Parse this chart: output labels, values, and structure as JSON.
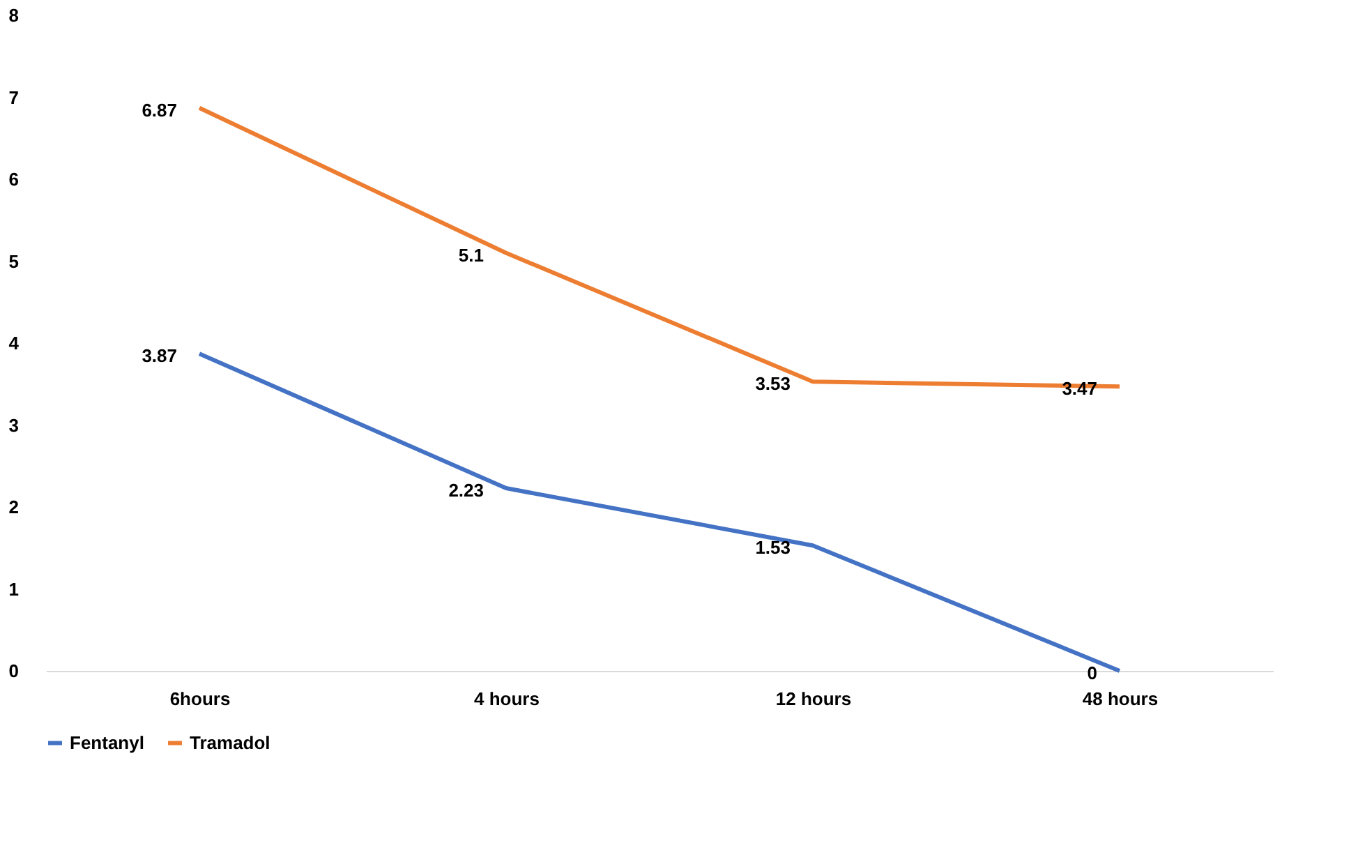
{
  "chart_data": {
    "type": "line",
    "categories": [
      "6hours",
      "4 hours",
      "12 hours",
      "48 hours"
    ],
    "series": [
      {
        "name": "Fentanyl",
        "color": "#4472c4",
        "values": [
          3.87,
          2.23,
          1.53,
          0
        ]
      },
      {
        "name": "Tramadol",
        "color": "#ed7d31",
        "values": [
          6.87,
          5.1,
          3.53,
          3.47
        ]
      }
    ],
    "ylim": [
      0,
      8
    ],
    "yticks": [
      0,
      1,
      2,
      3,
      4,
      5,
      6,
      7,
      8
    ],
    "grid": false,
    "legend": "bottom",
    "data_labels": true,
    "marker": "none",
    "line_style": "solid"
  }
}
